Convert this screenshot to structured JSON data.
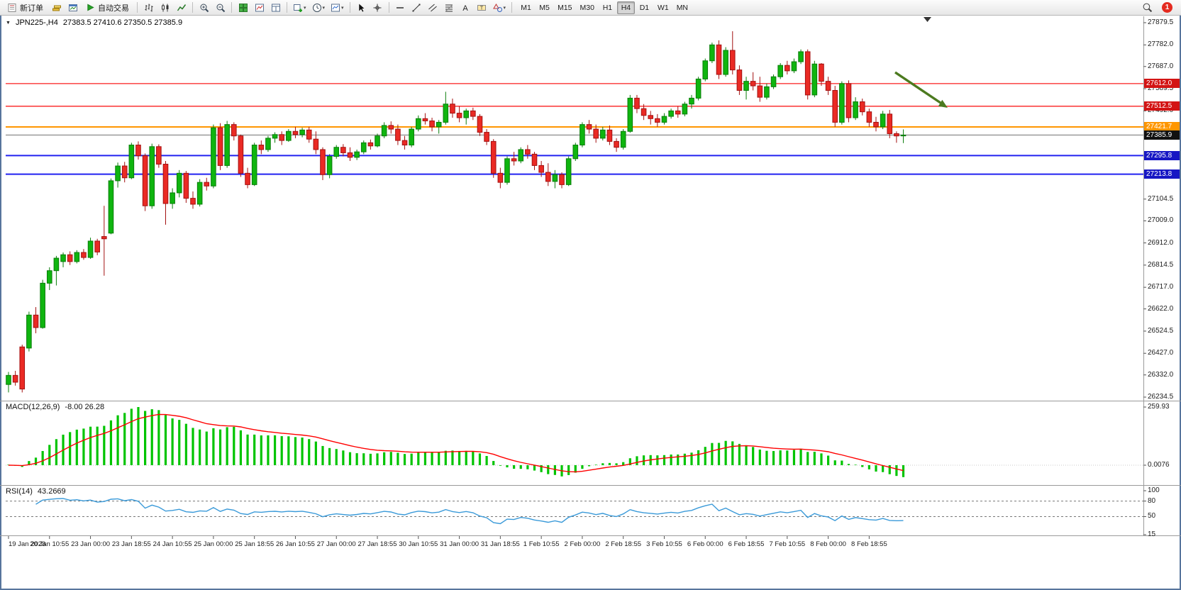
{
  "toolbar": {
    "new_order_label": "新订单",
    "auto_trading_label": "自动交易",
    "timeframes": [
      {
        "label": "M1",
        "active": false
      },
      {
        "label": "M5",
        "active": false
      },
      {
        "label": "M15",
        "active": false
      },
      {
        "label": "M30",
        "active": false
      },
      {
        "label": "H1",
        "active": false
      },
      {
        "label": "H4",
        "active": true
      },
      {
        "label": "D1",
        "active": false
      },
      {
        "label": "W1",
        "active": false
      },
      {
        "label": "MN",
        "active": false
      }
    ],
    "notification_count": "1"
  },
  "chart": {
    "symbol_period": "JPN225-,H4",
    "ohlc_text": "27383.5 27410.6 27350.5 27385.9",
    "up_color": "#0fb50f",
    "down_color": "#ea2a24",
    "annotation_arrow": {
      "color": "#4c7a1f"
    },
    "price_ticks": [
      "27879.5",
      "27782.0",
      "27687.0",
      "27589.5",
      "27492.0",
      "27104.5",
      "27009.0",
      "26912.0",
      "26814.5",
      "26717.0",
      "26622.0",
      "26524.5",
      "26427.0",
      "26332.0",
      "26234.5"
    ],
    "price_tags": [
      {
        "value": "27612.0",
        "price": 27612.0,
        "color": "#d31414",
        "line_color": "#fb1f1f",
        "line_width": 1.3
      },
      {
        "value": "27512.5",
        "price": 27512.5,
        "color": "#d31414",
        "line_color": "#fb1f1f",
        "line_width": 1.3
      },
      {
        "value": "27421.7",
        "price": 27421.7,
        "color": "#ff9600",
        "line_color": "#ff9600",
        "line_width": 2
      },
      {
        "value": "27385.9",
        "price": 27385.9,
        "color": "#111111",
        "line_color": "#707070",
        "line_width": 1
      },
      {
        "value": "27295.8",
        "price": 27295.8,
        "color": "#1717c4",
        "line_color": "#2222f0",
        "line_width": 2
      },
      {
        "value": "27213.8",
        "price": 27213.8,
        "color": "#1717c4",
        "line_color": "#2222f0",
        "line_width": 2
      }
    ],
    "time_labels": [
      "19 Jan 2023",
      "20 Jan 10:55",
      "23 Jan 00:00",
      "23 Jan 18:55",
      "24 Jan 10:55",
      "25 Jan 00:00",
      "25 Jan 18:55",
      "26 Jan 10:55",
      "27 Jan 00:00",
      "27 Jan 18:55",
      "30 Jan 10:55",
      "31 Jan 00:00",
      "31 Jan 18:55",
      "1 Feb 10:55",
      "2 Feb 00:00",
      "2 Feb 18:55",
      "3 Feb 10:55",
      "6 Feb 00:00",
      "6 Feb 18:55",
      "7 Feb 10:55",
      "8 Feb 00:00",
      "8 Feb 18:55"
    ],
    "candles": [
      [
        26290,
        26345,
        26255,
        26330
      ],
      [
        26330,
        26350,
        26285,
        26300
      ],
      [
        26455,
        26465,
        26255,
        26270
      ],
      [
        26450,
        26610,
        26435,
        26595
      ],
      [
        26595,
        26630,
        26515,
        26540
      ],
      [
        26540,
        26750,
        26535,
        26735
      ],
      [
        26735,
        26805,
        26705,
        26790
      ],
      [
        26790,
        26855,
        26725,
        26845
      ],
      [
        26830,
        26870,
        26805,
        26860
      ],
      [
        26860,
        26875,
        26815,
        26830
      ],
      [
        26830,
        26880,
        26822,
        26870
      ],
      [
        26870,
        26885,
        26838,
        26848
      ],
      [
        26848,
        26935,
        26842,
        26920
      ],
      [
        26920,
        26930,
        26858,
        26872
      ],
      [
        26940,
        27075,
        26768,
        26930
      ],
      [
        26955,
        27195,
        26950,
        27185
      ],
      [
        27185,
        27265,
        27155,
        27250
      ],
      [
        27250,
        27268,
        27178,
        27198
      ],
      [
        27198,
        27352,
        27192,
        27342
      ],
      [
        27342,
        27358,
        27278,
        27295
      ],
      [
        27295,
        27305,
        27052,
        27075
      ],
      [
        27075,
        27348,
        27062,
        27335
      ],
      [
        27335,
        27345,
        27242,
        27258
      ],
      [
        27258,
        27272,
        26992,
        27085
      ],
      [
        27085,
        27152,
        27062,
        27132
      ],
      [
        27132,
        27232,
        27112,
        27218
      ],
      [
        27218,
        27228,
        27088,
        27108
      ],
      [
        27108,
        27138,
        27062,
        27082
      ],
      [
        27082,
        27192,
        27072,
        27178
      ],
      [
        27178,
        27198,
        27142,
        27162
      ],
      [
        27162,
        27432,
        27152,
        27418
      ],
      [
        27418,
        27438,
        27232,
        27252
      ],
      [
        27252,
        27448,
        27242,
        27432
      ],
      [
        27432,
        27442,
        27362,
        27382
      ],
      [
        27382,
        27388,
        27202,
        27218
      ],
      [
        27218,
        27242,
        27152,
        27168
      ],
      [
        27168,
        27352,
        27162,
        27342
      ],
      [
        27342,
        27362,
        27302,
        27322
      ],
      [
        27322,
        27382,
        27312,
        27372
      ],
      [
        27372,
        27398,
        27352,
        27388
      ],
      [
        27388,
        27402,
        27342,
        27362
      ],
      [
        27362,
        27412,
        27356,
        27402
      ],
      [
        27402,
        27422,
        27372,
        27388
      ],
      [
        27388,
        27418,
        27376,
        27408
      ],
      [
        27408,
        27422,
        27352,
        27368
      ],
      [
        27368,
        27402,
        27302,
        27322
      ],
      [
        27322,
        27332,
        27188,
        27212
      ],
      [
        27212,
        27302,
        27196,
        27292
      ],
      [
        27292,
        27342,
        27282,
        27332
      ],
      [
        27332,
        27346,
        27292,
        27308
      ],
      [
        27308,
        27332,
        27272,
        27288
      ],
      [
        27288,
        27322,
        27276,
        27312
      ],
      [
        27312,
        27362,
        27302,
        27352
      ],
      [
        27352,
        27366,
        27322,
        27338
      ],
      [
        27338,
        27392,
        27332,
        27382
      ],
      [
        27382,
        27442,
        27372,
        27428
      ],
      [
        27428,
        27446,
        27392,
        27412
      ],
      [
        27412,
        27432,
        27342,
        27362
      ],
      [
        27362,
        27382,
        27322,
        27342
      ],
      [
        27342,
        27422,
        27332,
        27412
      ],
      [
        27412,
        27472,
        27402,
        27458
      ],
      [
        27458,
        27482,
        27432,
        27448
      ],
      [
        27448,
        27462,
        27402,
        27422
      ],
      [
        27422,
        27452,
        27392,
        27442
      ],
      [
        27442,
        27576,
        27432,
        27522
      ],
      [
        27522,
        27546,
        27462,
        27482
      ],
      [
        27482,
        27512,
        27442,
        27462
      ],
      [
        27462,
        27502,
        27432,
        27492
      ],
      [
        27492,
        27506,
        27452,
        27468
      ],
      [
        27468,
        27478,
        27382,
        27398
      ],
      [
        27398,
        27412,
        27342,
        27358
      ],
      [
        27358,
        27368,
        27198,
        27218
      ],
      [
        27218,
        27242,
        27152,
        27178
      ],
      [
        27178,
        27292,
        27168,
        27282
      ],
      [
        27282,
        27312,
        27252,
        27272
      ],
      [
        27272,
        27332,
        27262,
        27322
      ],
      [
        27322,
        27342,
        27282,
        27302
      ],
      [
        27302,
        27312,
        27232,
        27252
      ],
      [
        27252,
        27272,
        27202,
        27222
      ],
      [
        27222,
        27262,
        27162,
        27182
      ],
      [
        27182,
        27232,
        27152,
        27212
      ],
      [
        27212,
        27222,
        27152,
        27168
      ],
      [
        27168,
        27292,
        27162,
        27282
      ],
      [
        27282,
        27352,
        27272,
        27342
      ],
      [
        27342,
        27442,
        27332,
        27432
      ],
      [
        27432,
        27452,
        27392,
        27412
      ],
      [
        27412,
        27432,
        27352,
        27372
      ],
      [
        27372,
        27422,
        27362,
        27408
      ],
      [
        27408,
        27428,
        27342,
        27358
      ],
      [
        27358,
        27372,
        27312,
        27332
      ],
      [
        27332,
        27412,
        27322,
        27402
      ],
      [
        27402,
        27562,
        27396,
        27548
      ],
      [
        27548,
        27562,
        27482,
        27502
      ],
      [
        27502,
        27522,
        27452,
        27472
      ],
      [
        27472,
        27492,
        27432,
        27458
      ],
      [
        27458,
        27478,
        27422,
        27442
      ],
      [
        27442,
        27482,
        27432,
        27468
      ],
      [
        27468,
        27502,
        27458,
        27492
      ],
      [
        27492,
        27512,
        27462,
        27478
      ],
      [
        27478,
        27532,
        27468,
        27522
      ],
      [
        27522,
        27562,
        27502,
        27548
      ],
      [
        27548,
        27642,
        27538,
        27632
      ],
      [
        27632,
        27722,
        27622,
        27712
      ],
      [
        27712,
        27792,
        27702,
        27782
      ],
      [
        27782,
        27802,
        27632,
        27652
      ],
      [
        27652,
        27772,
        27642,
        27758
      ],
      [
        27758,
        27842,
        27652,
        27672
      ],
      [
        27672,
        27692,
        27562,
        27582
      ],
      [
        27582,
        27642,
        27542,
        27622
      ],
      [
        27622,
        27662,
        27582,
        27602
      ],
      [
        27602,
        27642,
        27532,
        27552
      ],
      [
        27552,
        27612,
        27542,
        27598
      ],
      [
        27598,
        27652,
        27588,
        27642
      ],
      [
        27642,
        27702,
        27632,
        27692
      ],
      [
        27692,
        27712,
        27652,
        27668
      ],
      [
        27668,
        27722,
        27658,
        27708
      ],
      [
        27708,
        27762,
        27698,
        27752
      ],
      [
        27752,
        27762,
        27542,
        27562
      ],
      [
        27562,
        27712,
        27552,
        27698
      ],
      [
        27698,
        27702,
        27602,
        27622
      ],
      [
        27622,
        27642,
        27562,
        27582
      ],
      [
        27582,
        27602,
        27422,
        27442
      ],
      [
        27442,
        27622,
        27432,
        27612
      ],
      [
        27612,
        27626,
        27442,
        27462
      ],
      [
        27462,
        27552,
        27452,
        27532
      ],
      [
        27532,
        27546,
        27472,
        27488
      ],
      [
        27488,
        27502,
        27422,
        27442
      ],
      [
        27442,
        27466,
        27402,
        27422
      ],
      [
        27422,
        27492,
        27412,
        27478
      ],
      [
        27478,
        27496,
        27372,
        27392
      ],
      [
        27392,
        27402,
        27352,
        27382
      ],
      [
        27383.5,
        27410.6,
        27350.5,
        27385.9
      ]
    ]
  },
  "macd": {
    "label": "MACD(12,26,9)",
    "values_text": "-8.00 26.28",
    "axis_labels": [
      "259.93",
      "0.0076"
    ],
    "histogram_color": "#00c400",
    "signal_color": "#ff0000",
    "params": {
      "fast": 12,
      "slow": 26,
      "signal": 9
    }
  },
  "rsi": {
    "label": "RSI(14)",
    "value_text": "43.2669",
    "axis_labels": [
      "100",
      "80",
      "50",
      "15"
    ],
    "levels": [
      80,
      50
    ],
    "line_color": "#3a9ad9",
    "period": 14
  }
}
